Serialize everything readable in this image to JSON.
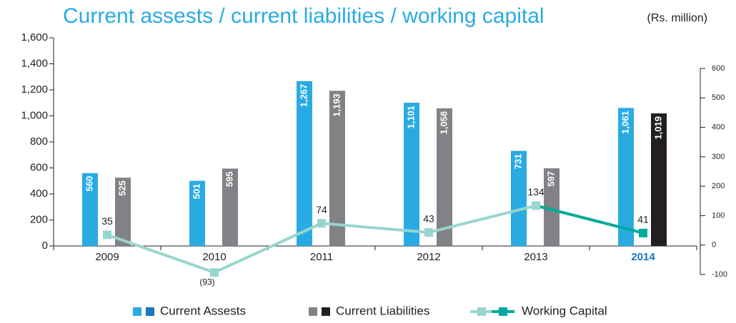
{
  "chart_data": {
    "type": "bar_line",
    "title": "Current assests / current liabilities / working capital",
    "unit": "(Rs. million)",
    "categories": [
      "2009",
      "2010",
      "2011",
      "2012",
      "2013",
      "2014"
    ],
    "highlight": "2014",
    "series": [
      {
        "name": "Current Assests",
        "type": "bar",
        "color": "#29abe2",
        "highlight_color": "#1b75bc",
        "values": [
          560,
          501,
          1267,
          1101,
          731,
          1061
        ],
        "value_labels": [
          "560",
          "501",
          "1,267",
          "1,101",
          "731",
          "1,061"
        ]
      },
      {
        "name": "Current Liabilities",
        "type": "bar",
        "color": "#808285",
        "highlight_color": "#231f20",
        "values": [
          525,
          595,
          1193,
          1058,
          597,
          1019
        ],
        "value_labels": [
          "525",
          "595",
          "1,193",
          "1,058",
          "597",
          "1,019"
        ]
      },
      {
        "name": "Working Capital",
        "type": "line",
        "axis": "y2",
        "color": "#99d5cf",
        "highlight_color": "#00a99d",
        "values": [
          35,
          -93,
          74,
          43,
          134,
          41
        ],
        "value_labels": [
          "35",
          "(93)",
          "74",
          "43",
          "134",
          "41"
        ]
      }
    ],
    "ylim": [
      0,
      1600
    ],
    "yticks": [
      0,
      200,
      400,
      600,
      800,
      {
        "value": 1000,
        "label": "1,000"
      },
      {
        "value": 1200,
        "label": "1,200"
      },
      {
        "value": 1400,
        "label": "1,400"
      },
      {
        "value": 1600,
        "label": "1,600"
      }
    ],
    "y2lim": [
      -100,
      600
    ],
    "y2ticks": [
      -100,
      0,
      100,
      200,
      300,
      400,
      500,
      600
    ]
  }
}
